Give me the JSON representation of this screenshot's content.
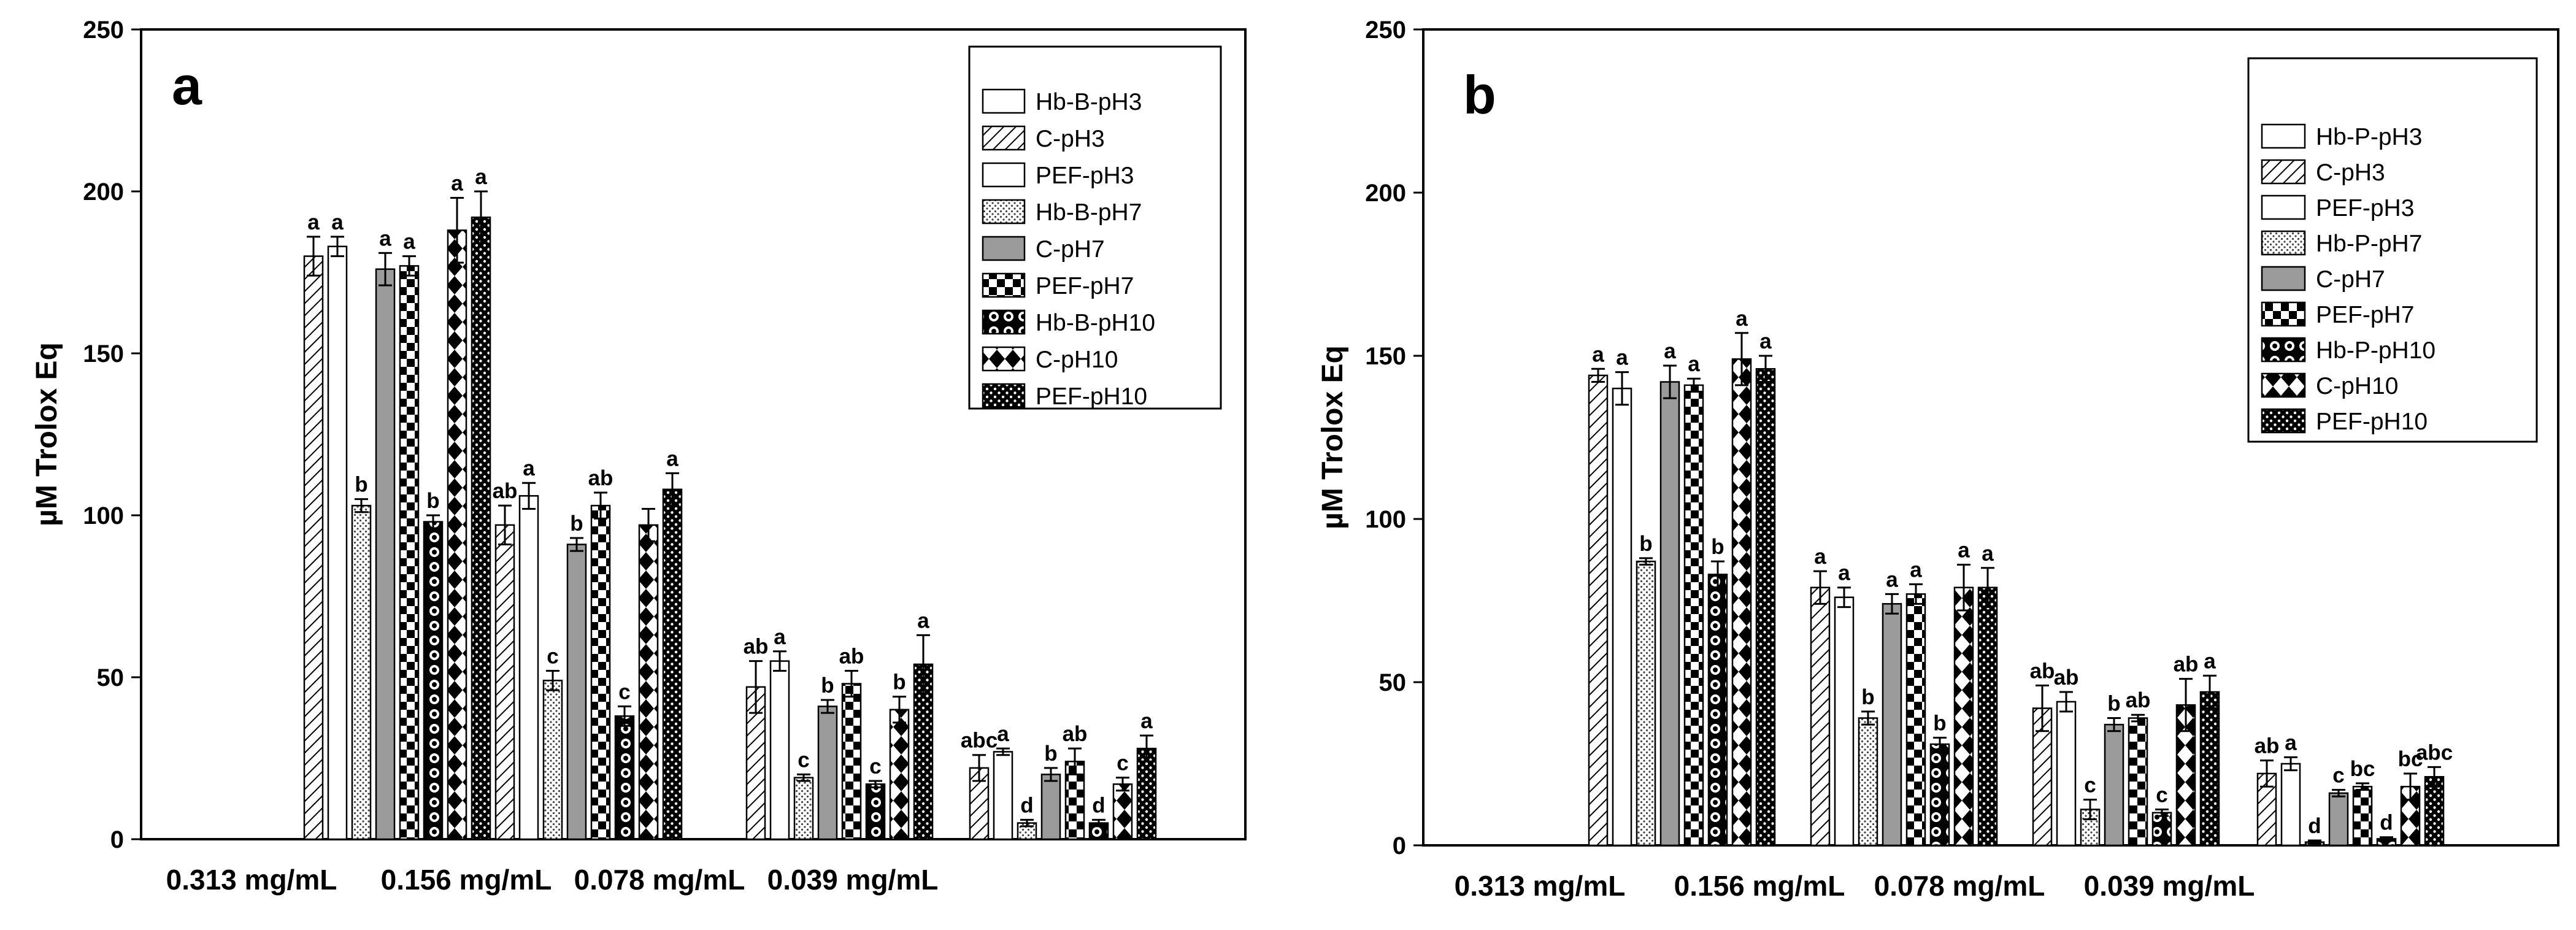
{
  "chart_data": [
    {
      "type": "bar",
      "panel_label": "a",
      "ylabel": "µM Trolox Eq",
      "xlabel": "",
      "ylim": [
        0,
        250
      ],
      "yticks": [
        "0",
        "50",
        "100",
        "150",
        "200",
        "250"
      ],
      "categories": [
        "0.313 mg/mL",
        "0.156 mg/mL",
        "0.078 mg/mL",
        "0.039 mg/mL"
      ],
      "legend_position": "top-right",
      "series": [
        {
          "name": "Hb-B-pH3",
          "pattern": "white",
          "values": [
            null,
            null,
            null,
            null
          ],
          "errors": [
            0,
            0,
            0,
            0
          ],
          "letters": [
            "",
            "",
            "",
            ""
          ]
        },
        {
          "name": "C-pH3",
          "pattern": "diag",
          "values": [
            180,
            97,
            47,
            22
          ],
          "errors": [
            6,
            6,
            8,
            4
          ],
          "letters": [
            "a",
            "ab",
            "ab",
            "abc"
          ]
        },
        {
          "name": "PEF-pH3",
          "pattern": "white",
          "values": [
            183,
            106,
            55,
            27
          ],
          "errors": [
            3,
            4,
            3,
            1
          ],
          "letters": [
            "a",
            "a",
            "a",
            "a"
          ]
        },
        {
          "name": "Hb-B-pH7",
          "pattern": "fine",
          "values": [
            103,
            49,
            19,
            5
          ],
          "errors": [
            2,
            3,
            1,
            1
          ],
          "letters": [
            "b",
            "c",
            "c",
            "d"
          ]
        },
        {
          "name": "C-pH7",
          "pattern": "gray",
          "values": [
            176,
            91,
            41,
            20
          ],
          "errors": [
            5,
            2,
            2,
            2
          ],
          "letters": [
            "a",
            "b",
            "b",
            "b"
          ]
        },
        {
          "name": "PEF-pH7",
          "pattern": "checker",
          "values": [
            177,
            103,
            48,
            24
          ],
          "errors": [
            3,
            4,
            4,
            4
          ],
          "letters": [
            "a",
            "ab",
            "ab",
            "ab"
          ]
        },
        {
          "name": "Hb-B-pH10",
          "pattern": "circles",
          "values": [
            98,
            38,
            17,
            5
          ],
          "errors": [
            2,
            3,
            1,
            1
          ],
          "letters": [
            "b",
            "c",
            "c",
            "d"
          ]
        },
        {
          "name": "C-pH10",
          "pattern": "diamond",
          "values": [
            188,
            97,
            40,
            17
          ],
          "errors": [
            10,
            5,
            4,
            2
          ],
          "letters": [
            "a",
            "",
            "b",
            "c"
          ]
        },
        {
          "name": "PEF-pH10",
          "pattern": "dots",
          "values": [
            192,
            108,
            54,
            28
          ],
          "errors": [
            8,
            5,
            9,
            4
          ],
          "letters": [
            "a",
            "a",
            "a",
            "a"
          ]
        }
      ]
    },
    {
      "type": "bar",
      "panel_label": "b",
      "ylabel": "µM Trolox Eq",
      "xlabel": "",
      "ylim": [
        0,
        250
      ],
      "yticks": [
        "0",
        "50",
        "100",
        "150",
        "200",
        "250"
      ],
      "categories": [
        "0.313 mg/mL",
        "0.156 mg/mL",
        "0.078 mg/mL",
        "0.039 mg/mL"
      ],
      "legend_position": "top-right",
      "series": [
        {
          "name": "Hb-P-pH3",
          "pattern": "white",
          "values": [
            null,
            null,
            null,
            null
          ],
          "errors": [
            0,
            0,
            0,
            0
          ],
          "letters": [
            "",
            "",
            "",
            ""
          ]
        },
        {
          "name": "C-pH3",
          "pattern": "diag",
          "values": [
            144,
            79,
            42,
            22
          ],
          "errors": [
            2,
            5,
            7,
            4
          ],
          "letters": [
            "a",
            "a",
            "ab",
            "ab"
          ]
        },
        {
          "name": "PEF-pH3",
          "pattern": "white",
          "values": [
            140,
            76,
            44,
            25
          ],
          "errors": [
            5,
            3,
            3,
            2
          ],
          "letters": [
            "a",
            "a",
            "ab",
            "a"
          ]
        },
        {
          "name": "Hb-P-pH7",
          "pattern": "fine",
          "values": [
            87,
            39,
            11,
            1
          ],
          "errors": [
            1,
            2,
            3,
            0.5
          ],
          "letters": [
            "b",
            "b",
            "c",
            "d"
          ]
        },
        {
          "name": "C-pH7",
          "pattern": "gray",
          "values": [
            142,
            74,
            37,
            16
          ],
          "errors": [
            5,
            3,
            2,
            1
          ],
          "letters": [
            "a",
            "a",
            "b",
            "c"
          ]
        },
        {
          "name": "PEF-pH7",
          "pattern": "checker",
          "values": [
            141,
            77,
            39,
            18
          ],
          "errors": [
            2,
            3,
            1,
            1
          ],
          "letters": [
            "a",
            "a",
            "ab",
            "bc"
          ]
        },
        {
          "name": "Hb-P-pH10",
          "pattern": "circles",
          "values": [
            83,
            31,
            10,
            2
          ],
          "errors": [
            4,
            2,
            1,
            0.5
          ],
          "letters": [
            "b",
            "b",
            "c",
            "d"
          ]
        },
        {
          "name": "C-pH10",
          "pattern": "diamond",
          "values": [
            149,
            79,
            43,
            18
          ],
          "errors": [
            8,
            7,
            8,
            4
          ],
          "letters": [
            "a",
            "a",
            "ab",
            "bc"
          ]
        },
        {
          "name": "PEF-pH10",
          "pattern": "dots",
          "values": [
            146,
            79,
            47,
            21
          ],
          "errors": [
            4,
            6,
            5,
            3
          ],
          "letters": [
            "a",
            "a",
            "a",
            "abc"
          ]
        }
      ]
    }
  ]
}
